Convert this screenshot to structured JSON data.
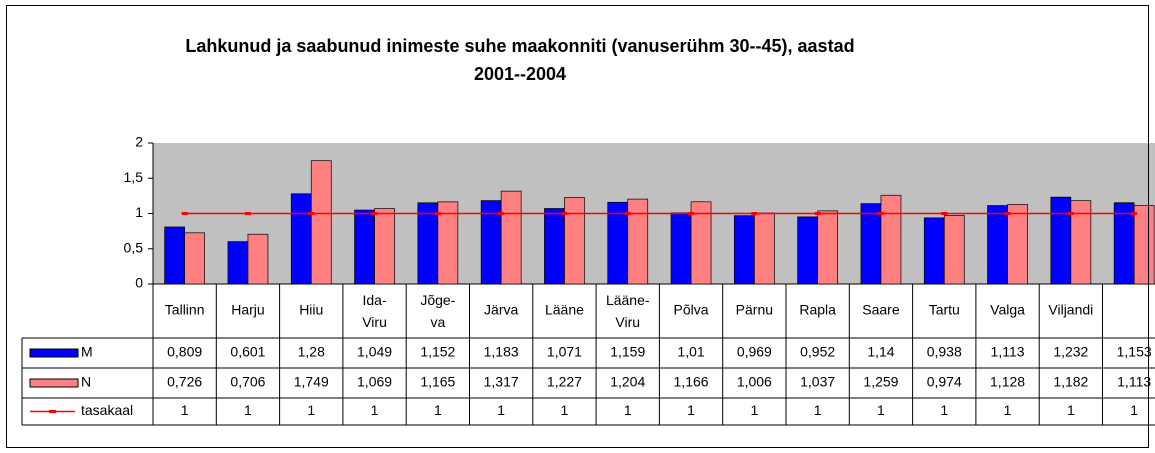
{
  "chart_data": {
    "type": "bar",
    "title": "Lahkunud ja saabunud inimeste suhe maakonniti (vanuserühm 30--45), aastad 2001--2004",
    "categories": [
      "Tallinn",
      "Harju",
      "Hiiu",
      "Ida-Viru",
      "Jõge-va",
      "Järva",
      "Lääne",
      "Lääne-Viru",
      "Põlva",
      "Pärnu",
      "Rapla",
      "Saare",
      "Tartu",
      "Valga",
      "Viljandi",
      null
    ],
    "series": [
      {
        "name": "M",
        "color": "#0000ff",
        "values": [
          0.809,
          0.601,
          1.28,
          1.049,
          1.152,
          1.183,
          1.071,
          1.159,
          1.01,
          0.969,
          0.952,
          1.14,
          0.938,
          1.113,
          1.232,
          1.153
        ],
        "value_labels": [
          "0,809",
          "0,601",
          "1,28",
          "1,049",
          "1,152",
          "1,183",
          "1,071",
          "1,159",
          "1,01",
          "0,969",
          "0,952",
          "1,14",
          "0,938",
          "1,113",
          "1,232",
          "1,153"
        ]
      },
      {
        "name": "N",
        "color": "#ff8080",
        "values": [
          0.726,
          0.706,
          1.749,
          1.069,
          1.165,
          1.317,
          1.227,
          1.204,
          1.166,
          1.006,
          1.037,
          1.259,
          0.974,
          1.128,
          1.182,
          1.113
        ],
        "value_labels": [
          "0,726",
          "0,706",
          "1,749",
          "1,069",
          "1,165",
          "1,317",
          "1,227",
          "1,204",
          "1,166",
          "1,006",
          "1,037",
          "1,259",
          "0,974",
          "1,128",
          "1,182",
          "1,113"
        ]
      },
      {
        "name": "tasakaal",
        "type": "line",
        "color": "#ff0000",
        "values": [
          1,
          1,
          1,
          1,
          1,
          1,
          1,
          1,
          1,
          1,
          1,
          1,
          1,
          1,
          1,
          1
        ]
      }
    ],
    "ylim": [
      0,
      2
    ],
    "yticks": [
      0,
      {
        "value": 0.5,
        "label": "0,5"
      },
      1,
      {
        "value": 1.5,
        "label": "1,5"
      },
      2
    ],
    "plot_background": "#c0c0c0"
  }
}
